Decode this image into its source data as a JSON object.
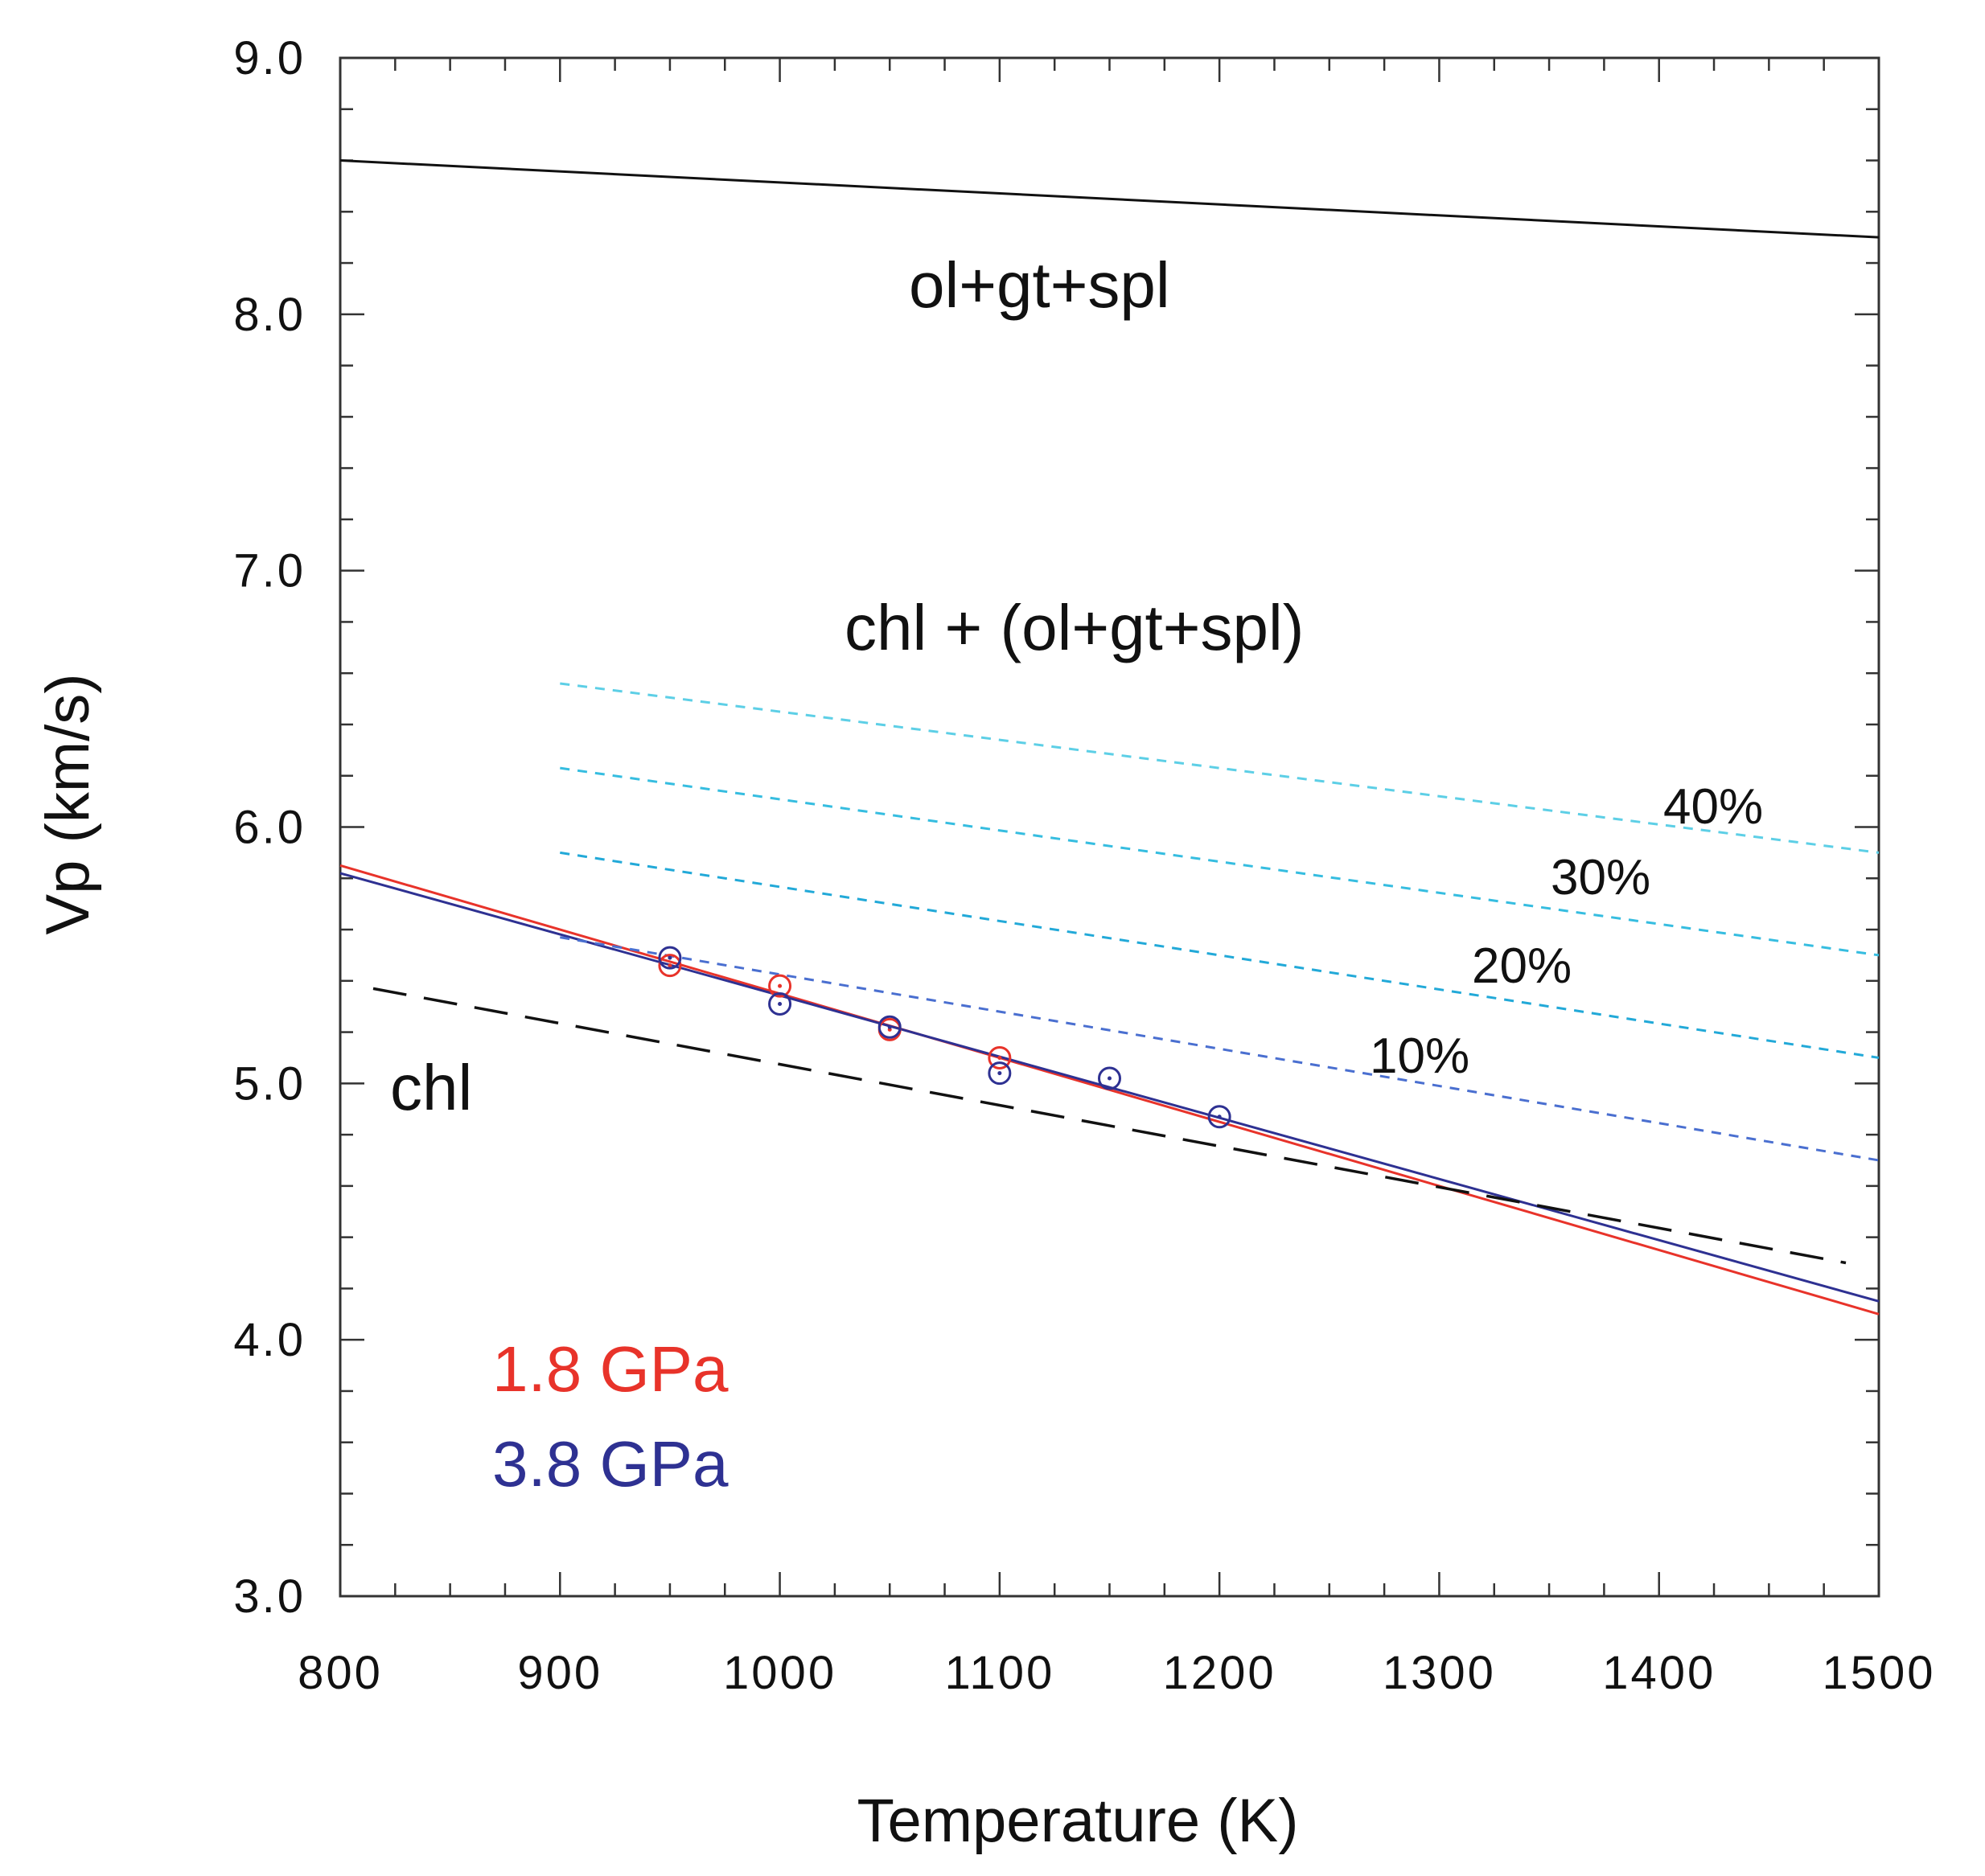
{
  "chart_data": {
    "type": "line",
    "title": "",
    "xlabel": "Temperature (K)",
    "ylabel": "Vp (km/s)",
    "xlim": [
      800,
      1500
    ],
    "ylim": [
      3.0,
      9.0
    ],
    "x_ticks": [
      "800",
      "900",
      "1000",
      "1100",
      "1200",
      "1300",
      "1400",
      "1500"
    ],
    "y_ticks": [
      "3.0",
      "4.0",
      "5.0",
      "6.0",
      "7.0",
      "8.0",
      "9.0"
    ],
    "region_labels": {
      "ol_gt_spl": "ol+gt+spl",
      "mixture": "chl + (ol+gt+spl)",
      "chl": "chl"
    },
    "percent_labels": [
      "10%",
      "20%",
      "30%",
      "40%"
    ],
    "legend": [
      "1.8 GPa",
      "3.8 GPa"
    ],
    "colors": {
      "red": "#e8332a",
      "blue": "#2e3192",
      "black": "#111111",
      "cyan_40": "#5dcfe6",
      "cyan_30": "#36bde0",
      "cyan_20": "#22a9d8",
      "blue_10": "#4a6fd0"
    },
    "series": [
      {
        "name": "ol+gt+spl",
        "style": "solid",
        "color": "#111111",
        "x": [
          800,
          1500
        ],
        "y": [
          8.6,
          8.3
        ]
      },
      {
        "name": "1.8 GPa",
        "style": "solid",
        "color": "#e8332a",
        "x": [
          800,
          1500
        ],
        "y": [
          5.85,
          4.1
        ]
      },
      {
        "name": "3.8 GPa",
        "style": "solid",
        "color": "#2e3192",
        "x": [
          800,
          1500
        ],
        "y": [
          5.82,
          4.15
        ]
      },
      {
        "name": "chl",
        "style": "dashed",
        "color": "#111111",
        "x": [
          815,
          1485
        ],
        "y": [
          5.37,
          4.3
        ]
      },
      {
        "name": "10%",
        "style": "dotted",
        "color": "#4a6fd0",
        "x": [
          900,
          1500
        ],
        "y": [
          5.57,
          4.7
        ]
      },
      {
        "name": "20%",
        "style": "dotted",
        "color": "#22a9d8",
        "x": [
          900,
          1500
        ],
        "y": [
          5.9,
          5.1
        ]
      },
      {
        "name": "30%",
        "style": "dotted",
        "color": "#36bde0",
        "x": [
          900,
          1500
        ],
        "y": [
          6.23,
          5.5
        ]
      },
      {
        "name": "40%",
        "style": "dotted",
        "color": "#5dcfe6",
        "x": [
          900,
          1500
        ],
        "y": [
          6.56,
          5.9
        ]
      }
    ],
    "points": [
      {
        "name": "1.8 GPa data",
        "color": "#e8332a",
        "x": [
          950,
          1000,
          1050,
          1100
        ],
        "y": [
          5.46,
          5.38,
          5.21,
          5.1
        ]
      },
      {
        "name": "3.8 GPa data",
        "color": "#2e3192",
        "x": [
          950,
          1000,
          1050,
          1100,
          1150,
          1200
        ],
        "y": [
          5.49,
          5.31,
          5.22,
          5.04,
          5.02,
          4.87
        ]
      }
    ]
  }
}
